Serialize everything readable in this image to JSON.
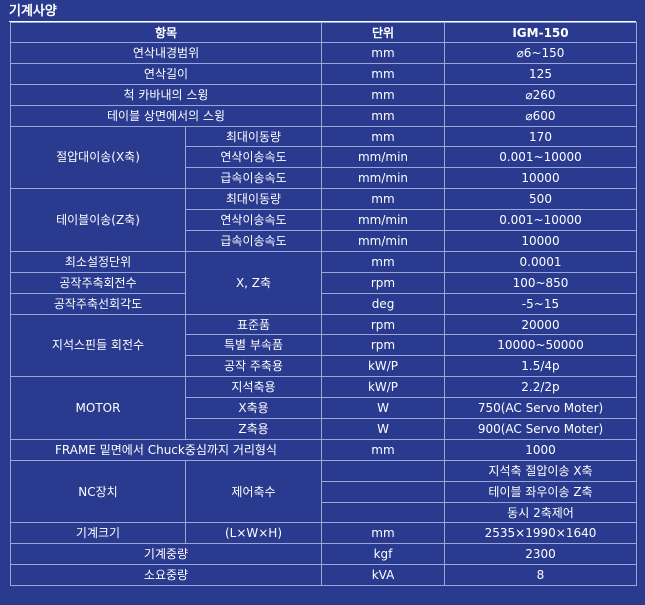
{
  "page_title": "기계사양",
  "header": {
    "item": "항목",
    "unit": "단위",
    "model": "IGM-150"
  },
  "rows": {
    "r1": {
      "label": "연삭내경범위",
      "unit": "mm",
      "value": "⌀6~150"
    },
    "r2": {
      "label": "연삭길이",
      "unit": "mm",
      "value": "125"
    },
    "r3": {
      "label": "척 카바내의 스윙",
      "unit": "mm",
      "value": "⌀260"
    },
    "r4": {
      "label": "테이블 상면에서의 스윙",
      "unit": "mm",
      "value": "⌀600"
    },
    "cut": {
      "label": "절압대이송(X축)",
      "s1": {
        "label": "최대이동량",
        "unit": "mm",
        "value": "170"
      },
      "s2": {
        "label": "연삭이송속도",
        "unit": "mm/min",
        "value": "0.001~10000"
      },
      "s3": {
        "label": "급속이송속도",
        "unit": "mm/min",
        "value": "10000"
      }
    },
    "table": {
      "label": "테이블이송(Z축)",
      "s1": {
        "label": "최대이동량",
        "unit": "mm",
        "value": "500"
      },
      "s2": {
        "label": "연삭이송속도",
        "unit": "mm/min",
        "value": "0.001~10000"
      },
      "s3": {
        "label": "급속이송속도",
        "unit": "mm/min",
        "value": "10000"
      }
    },
    "axis_group": {
      "sub": "X, Z축",
      "r1": {
        "label": "최소설정단위",
        "unit": "mm",
        "value": "0.0001"
      },
      "r2": {
        "label": "공작주축회전수",
        "unit": "rpm",
        "value": "100~850"
      },
      "r3": {
        "label": "공작주축선회각도",
        "unit": "deg",
        "value": "-5~15"
      }
    },
    "spindle": {
      "label": "지석스핀들 회전수",
      "s1": {
        "label": "표준품",
        "unit": "rpm",
        "value": "20000"
      },
      "s2": {
        "label": "특별 부속품",
        "unit": "rpm",
        "value": "10000~50000"
      },
      "s3": {
        "label": "공작 주축용",
        "unit": "kW/P",
        "value": "1.5/4p"
      }
    },
    "motor": {
      "label": "MOTOR",
      "s1": {
        "label": "지석축용",
        "unit": "kW/P",
        "value": "2.2/2p"
      },
      "s2": {
        "label": "X축용",
        "unit": "W",
        "value": "750(AC Servo Moter)"
      },
      "s3": {
        "label": "Z축용",
        "unit": "W",
        "value": "900(AC Servo Moter)"
      }
    },
    "frame": {
      "label": "FRAME 밑면에서 Chuck중심까지 거리형식",
      "unit": "mm",
      "value": "1000"
    },
    "nc": {
      "label": "NC장치",
      "sub": "제어축수",
      "v1": "지석축 절압이송 X축",
      "v2": "테이블 좌우이송 Z축",
      "v3": "동시 2축제어"
    },
    "size": {
      "label": "기계크기",
      "sub": "(L×W×H)",
      "unit": "mm",
      "value": "2535×1990×1640"
    },
    "weight": {
      "label": "기계중량",
      "unit": "kgf",
      "value": "2300"
    },
    "power": {
      "label": "소요중량",
      "unit": "kVA",
      "value": "8"
    }
  }
}
